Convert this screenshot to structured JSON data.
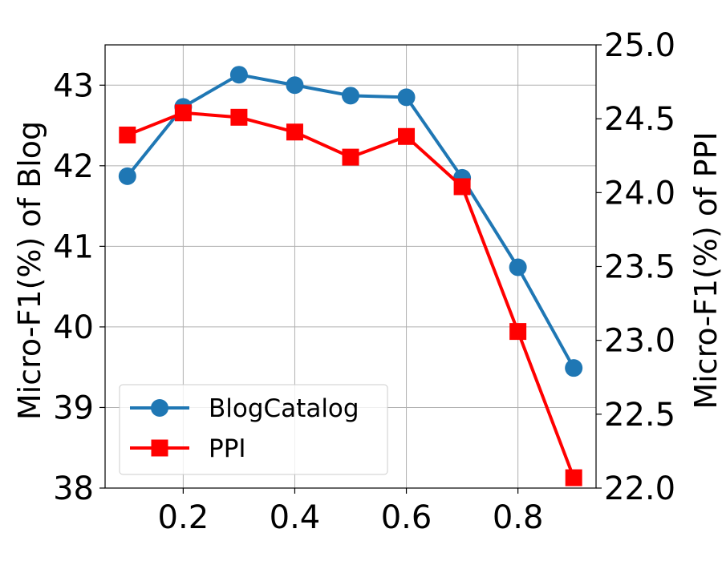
{
  "chart_data": {
    "type": "line",
    "x": [
      0.1,
      0.2,
      0.3,
      0.4,
      0.5,
      0.6,
      0.7,
      0.8,
      0.9
    ],
    "xlim": [
      0.06,
      0.94
    ],
    "xticks": [
      0.2,
      0.4,
      0.6,
      0.8
    ],
    "xtick_labels": [
      "0.2",
      "0.4",
      "0.6",
      "0.8"
    ],
    "ylabel_left": "Micro-F1(%) of Blog",
    "ylabel_right": "Micro-F1(%) of PPI",
    "ylim_left": [
      38,
      43.5
    ],
    "yticks_left": [
      38,
      39,
      40,
      41,
      42,
      43
    ],
    "ytick_labels_left": [
      "38",
      "39",
      "40",
      "41",
      "42",
      "43"
    ],
    "ylim_right": [
      22.0,
      25.0
    ],
    "yticks_right": [
      22.0,
      22.5,
      23.0,
      23.5,
      24.0,
      24.5,
      25.0
    ],
    "ytick_labels_right": [
      "22.0",
      "22.5",
      "23.0",
      "23.5",
      "24.0",
      "24.5",
      "25.0"
    ],
    "grid": true,
    "legend_position": "lower-left",
    "series": [
      {
        "name": "BlogCatalog",
        "axis": "left",
        "color": "#1f77b4",
        "marker": "circle",
        "values": [
          41.87,
          42.73,
          43.13,
          43.0,
          42.87,
          42.85,
          41.85,
          40.74,
          39.49
        ]
      },
      {
        "name": "PPI",
        "axis": "right",
        "color": "#ff0000",
        "marker": "square",
        "values": [
          24.39,
          24.54,
          24.51,
          24.41,
          24.24,
          24.38,
          24.04,
          23.06,
          22.07
        ]
      }
    ]
  }
}
